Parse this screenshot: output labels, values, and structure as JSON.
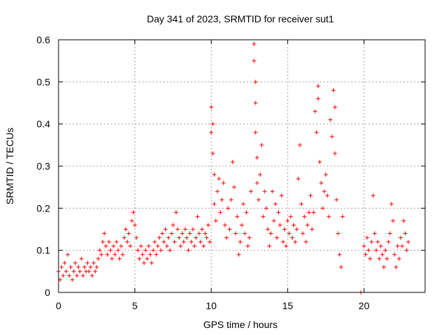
{
  "chart_data": {
    "type": "scatter",
    "title": "Day 341 of 2023, SRMTID for receiver sut1",
    "xlabel": "GPS time / hours",
    "ylabel": "SRMTID / TECUs",
    "xlim": [
      0,
      24
    ],
    "ylim": [
      0,
      0.6
    ],
    "x_ticks": [
      0,
      5,
      10,
      15,
      20
    ],
    "y_ticks": [
      0,
      0.1,
      0.2,
      0.3,
      0.4,
      0.5,
      0.6
    ],
    "x_tick_labels": [
      "0",
      "5",
      "10",
      "15",
      "20"
    ],
    "y_tick_labels": [
      "0",
      "0.1",
      "0.2",
      "0.3",
      "0.4",
      "0.5",
      "0.6"
    ],
    "grid": true,
    "marker": "+",
    "series": [
      {
        "name": "SRMTID",
        "color": "#ff0000",
        "points": [
          [
            0.0,
            0.05
          ],
          [
            0.1,
            0.03
          ],
          [
            0.2,
            0.06
          ],
          [
            0.3,
            0.04
          ],
          [
            0.4,
            0.07
          ],
          [
            0.5,
            0.05
          ],
          [
            0.6,
            0.09
          ],
          [
            0.7,
            0.04
          ],
          [
            0.8,
            0.06
          ],
          [
            0.9,
            0.03
          ],
          [
            1.0,
            0.05
          ],
          [
            1.1,
            0.07
          ],
          [
            1.2,
            0.04
          ],
          [
            1.3,
            0.06
          ],
          [
            1.4,
            0.05
          ],
          [
            1.5,
            0.08
          ],
          [
            1.6,
            0.04
          ],
          [
            1.7,
            0.06
          ],
          [
            1.8,
            0.05
          ],
          [
            1.9,
            0.07
          ],
          [
            2.0,
            0.05
          ],
          [
            2.1,
            0.06
          ],
          [
            2.2,
            0.04
          ],
          [
            2.3,
            0.07
          ],
          [
            2.4,
            0.05
          ],
          [
            2.5,
            0.06
          ],
          [
            2.6,
            0.08
          ],
          [
            2.7,
            0.1
          ],
          [
            2.8,
            0.09
          ],
          [
            2.9,
            0.12
          ],
          [
            3.0,
            0.14
          ],
          [
            3.1,
            0.11
          ],
          [
            3.2,
            0.09
          ],
          [
            3.3,
            0.12
          ],
          [
            3.4,
            0.1
          ],
          [
            3.5,
            0.08
          ],
          [
            3.6,
            0.11
          ],
          [
            3.7,
            0.09
          ],
          [
            3.8,
            0.12
          ],
          [
            3.9,
            0.1
          ],
          [
            4.0,
            0.08
          ],
          [
            4.1,
            0.11
          ],
          [
            4.2,
            0.09
          ],
          [
            4.3,
            0.13
          ],
          [
            4.4,
            0.15
          ],
          [
            4.5,
            0.12
          ],
          [
            4.6,
            0.14
          ],
          [
            4.7,
            0.11
          ],
          [
            4.8,
            0.17
          ],
          [
            4.9,
            0.19
          ],
          [
            5.0,
            0.16
          ],
          [
            5.1,
            0.13
          ],
          [
            5.2,
            0.1
          ],
          [
            5.3,
            0.08
          ],
          [
            5.4,
            0.11
          ],
          [
            5.5,
            0.09
          ],
          [
            5.6,
            0.07
          ],
          [
            5.7,
            0.1
          ],
          [
            5.8,
            0.08
          ],
          [
            5.9,
            0.11
          ],
          [
            6.0,
            0.09
          ],
          [
            6.1,
            0.07
          ],
          [
            6.2,
            0.1
          ],
          [
            6.3,
            0.12
          ],
          [
            6.4,
            0.09
          ],
          [
            6.5,
            0.11
          ],
          [
            6.6,
            0.13
          ],
          [
            6.7,
            0.1
          ],
          [
            6.8,
            0.14
          ],
          [
            6.9,
            0.12
          ],
          [
            7.0,
            0.15
          ],
          [
            7.1,
            0.11
          ],
          [
            7.2,
            0.13
          ],
          [
            7.3,
            0.1
          ],
          [
            7.4,
            0.14
          ],
          [
            7.5,
            0.16
          ],
          [
            7.6,
            0.12
          ],
          [
            7.7,
            0.19
          ],
          [
            7.8,
            0.15
          ],
          [
            7.9,
            0.13
          ],
          [
            8.0,
            0.11
          ],
          [
            8.1,
            0.14
          ],
          [
            8.2,
            0.12
          ],
          [
            8.3,
            0.15
          ],
          [
            8.4,
            0.13
          ],
          [
            8.5,
            0.1
          ],
          [
            8.6,
            0.14
          ],
          [
            8.7,
            0.12
          ],
          [
            8.8,
            0.15
          ],
          [
            8.9,
            0.11
          ],
          [
            9.0,
            0.13
          ],
          [
            9.1,
            0.18
          ],
          [
            9.2,
            0.14
          ],
          [
            9.3,
            0.12
          ],
          [
            9.4,
            0.15
          ],
          [
            9.5,
            0.11
          ],
          [
            9.6,
            0.14
          ],
          [
            9.7,
            0.13
          ],
          [
            9.8,
            0.16
          ],
          [
            9.9,
            0.12
          ],
          [
            10.0,
            0.44
          ],
          [
            10.0,
            0.38
          ],
          [
            10.1,
            0.33
          ],
          [
            10.1,
            0.4
          ],
          [
            10.2,
            0.28
          ],
          [
            10.2,
            0.21
          ],
          [
            10.3,
            0.17
          ],
          [
            10.4,
            0.24
          ],
          [
            10.5,
            0.27
          ],
          [
            10.6,
            0.19
          ],
          [
            10.7,
            0.22
          ],
          [
            10.8,
            0.26
          ],
          [
            10.9,
            0.16
          ],
          [
            11.0,
            0.13
          ],
          [
            11.1,
            0.2
          ],
          [
            11.2,
            0.15
          ],
          [
            11.3,
            0.22
          ],
          [
            11.4,
            0.31
          ],
          [
            11.5,
            0.25
          ],
          [
            11.6,
            0.14
          ],
          [
            11.7,
            0.18
          ],
          [
            11.8,
            0.09
          ],
          [
            11.9,
            0.12
          ],
          [
            12.0,
            0.16
          ],
          [
            12.1,
            0.21
          ],
          [
            12.2,
            0.14
          ],
          [
            12.3,
            0.19
          ],
          [
            12.4,
            0.11
          ],
          [
            12.5,
            0.13
          ],
          [
            12.6,
            0.24
          ],
          [
            12.8,
            0.59
          ],
          [
            12.8,
            0.55
          ],
          [
            12.9,
            0.5
          ],
          [
            12.9,
            0.45
          ],
          [
            12.9,
            0.38
          ],
          [
            13.0,
            0.32
          ],
          [
            13.0,
            0.26
          ],
          [
            13.1,
            0.22
          ],
          [
            13.2,
            0.28
          ],
          [
            13.3,
            0.35
          ],
          [
            13.4,
            0.18
          ],
          [
            13.5,
            0.24
          ],
          [
            13.6,
            0.2
          ],
          [
            13.7,
            0.15
          ],
          [
            13.8,
            0.11
          ],
          [
            13.9,
            0.14
          ],
          [
            14.0,
            0.24
          ],
          [
            14.1,
            0.17
          ],
          [
            14.2,
            0.21
          ],
          [
            14.3,
            0.13
          ],
          [
            14.4,
            0.19
          ],
          [
            14.5,
            0.16
          ],
          [
            14.6,
            0.23
          ],
          [
            14.7,
            0.12
          ],
          [
            14.8,
            0.15
          ],
          [
            14.9,
            0.11
          ],
          [
            15.0,
            0.17
          ],
          [
            15.1,
            0.14
          ],
          [
            15.2,
            0.18
          ],
          [
            15.3,
            0.13
          ],
          [
            15.4,
            0.16
          ],
          [
            15.5,
            0.12
          ],
          [
            15.6,
            0.15
          ],
          [
            15.7,
            0.27
          ],
          [
            15.8,
            0.35
          ],
          [
            15.9,
            0.21
          ],
          [
            16.0,
            0.14
          ],
          [
            16.1,
            0.18
          ],
          [
            16.2,
            0.12
          ],
          [
            16.3,
            0.16
          ],
          [
            16.4,
            0.19
          ],
          [
            16.5,
            0.23
          ],
          [
            16.6,
            0.15
          ],
          [
            16.7,
            0.19
          ],
          [
            16.8,
            0.43
          ],
          [
            16.9,
            0.38
          ],
          [
            17.0,
            0.49
          ],
          [
            17.0,
            0.46
          ],
          [
            17.1,
            0.31
          ],
          [
            17.2,
            0.26
          ],
          [
            17.3,
            0.2
          ],
          [
            17.4,
            0.24
          ],
          [
            17.5,
            0.28
          ],
          [
            17.6,
            0.23
          ],
          [
            17.7,
            0.18
          ],
          [
            17.8,
            0.41
          ],
          [
            17.9,
            0.37
          ],
          [
            18.0,
            0.48
          ],
          [
            18.1,
            0.44
          ],
          [
            18.1,
            0.33
          ],
          [
            18.2,
            0.22
          ],
          [
            18.3,
            0.14
          ],
          [
            18.4,
            0.09
          ],
          [
            18.5,
            0.06
          ],
          [
            18.6,
            0.18
          ],
          [
            19.8,
            0.0
          ],
          [
            20.0,
            0.11
          ],
          [
            20.1,
            0.09
          ],
          [
            20.2,
            0.13
          ],
          [
            20.3,
            0.1
          ],
          [
            20.4,
            0.08
          ],
          [
            20.5,
            0.12
          ],
          [
            20.6,
            0.23
          ],
          [
            20.7,
            0.14
          ],
          [
            20.8,
            0.1
          ],
          [
            20.9,
            0.12
          ],
          [
            21.0,
            0.08
          ],
          [
            21.1,
            0.11
          ],
          [
            21.2,
            0.09
          ],
          [
            21.3,
            0.06
          ],
          [
            21.4,
            0.1
          ],
          [
            21.5,
            0.08
          ],
          [
            21.6,
            0.12
          ],
          [
            21.7,
            0.14
          ],
          [
            21.8,
            0.21
          ],
          [
            21.9,
            0.17
          ],
          [
            22.0,
            0.09
          ],
          [
            22.1,
            0.06
          ],
          [
            22.2,
            0.11
          ],
          [
            22.3,
            0.08
          ],
          [
            22.4,
            0.13
          ],
          [
            22.5,
            0.11
          ],
          [
            22.6,
            0.17
          ],
          [
            22.7,
            0.14
          ],
          [
            22.8,
            0.1
          ],
          [
            22.9,
            0.12
          ]
        ]
      }
    ]
  }
}
